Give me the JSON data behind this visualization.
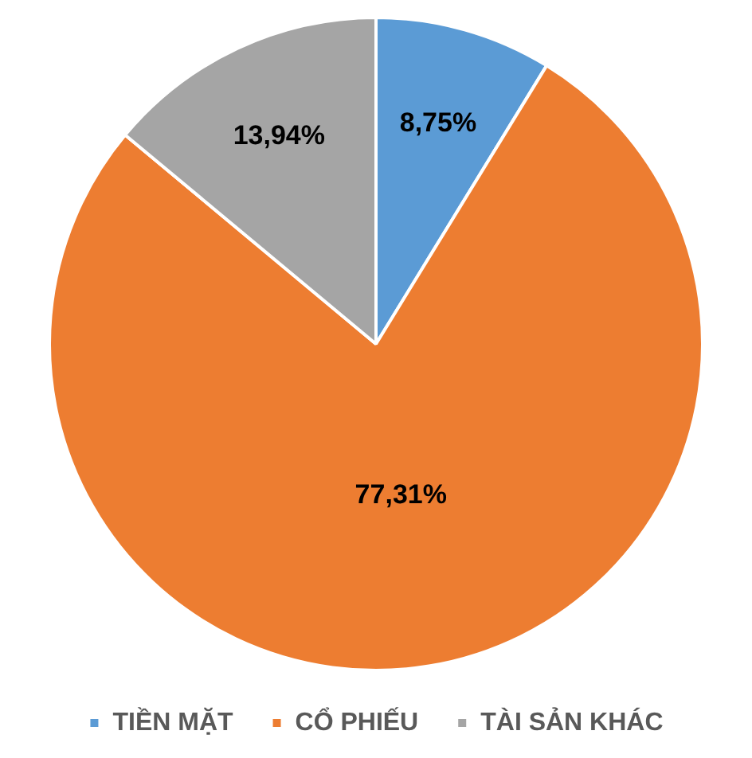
{
  "chart_data": {
    "type": "pie",
    "categories": [
      "TIỀN MẶT",
      "CỔ PHIẾU",
      "TÀI SẢN KHÁC"
    ],
    "values": [
      8.75,
      77.31,
      13.94
    ],
    "colors": [
      "#5b9bd5",
      "#ed7d31",
      "#a5a5a5"
    ],
    "value_labels": [
      "8,75%",
      "77,31%",
      "13,94%"
    ],
    "legend": "bottom"
  }
}
